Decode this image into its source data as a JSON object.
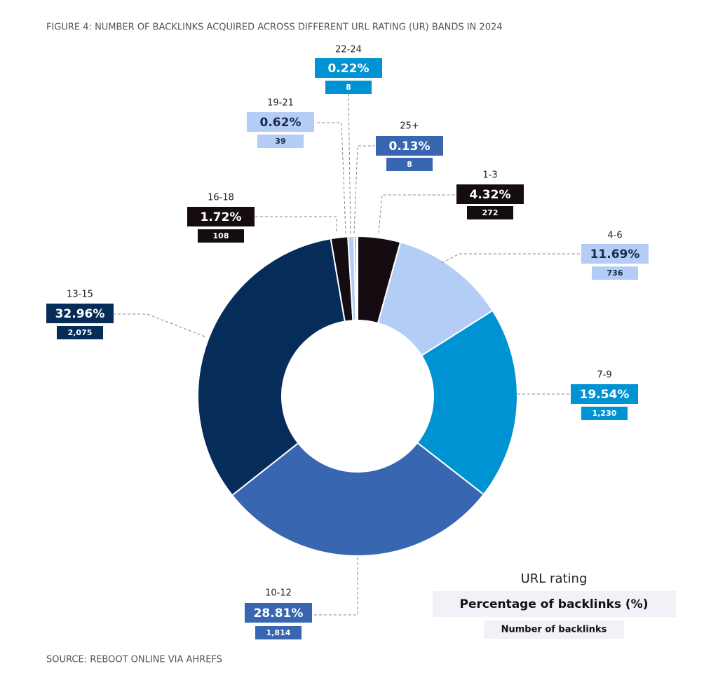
{
  "chart_data": {
    "type": "donut",
    "title": "FIGURE 4: NUMBER OF BACKLINKS ACQUIRED ACROSS DIFFERENT URL RATING (UR) BANDS IN 2024",
    "source": "SOURCE: REBOOT ONLINE VIA AHREFS",
    "legend_title": "URL rating",
    "categories": [
      "1-3",
      "4-6",
      "7-9",
      "10-12",
      "13-15",
      "16-18",
      "19-21",
      "22-24",
      "25+"
    ],
    "colors": [
      "#150c12",
      "#b3cdf7",
      "#0093d3",
      "#3866b0",
      "#062c5a",
      "#150c12",
      "#b3cdf7",
      "#0093d3",
      "#3866b0"
    ],
    "series": [
      {
        "name": "Percentage of backlinks (%)",
        "values": [
          4.32,
          11.69,
          19.54,
          28.81,
          32.96,
          1.72,
          0.62,
          0.22,
          0.13
        ],
        "value_labels": [
          "4.32%",
          "11.69%",
          "19.54%",
          "28.81%",
          "32.96%",
          "1.72%",
          "0.62%",
          "0.22%",
          "0.13%"
        ]
      },
      {
        "name": "Number of backlinks",
        "values": [
          272,
          736,
          1230,
          1814,
          2075,
          108,
          39,
          8,
          8
        ],
        "value_labels": [
          "272",
          "736",
          "1,230",
          "1,814",
          "2,075",
          "108",
          "39",
          "8",
          "8"
        ]
      }
    ]
  }
}
